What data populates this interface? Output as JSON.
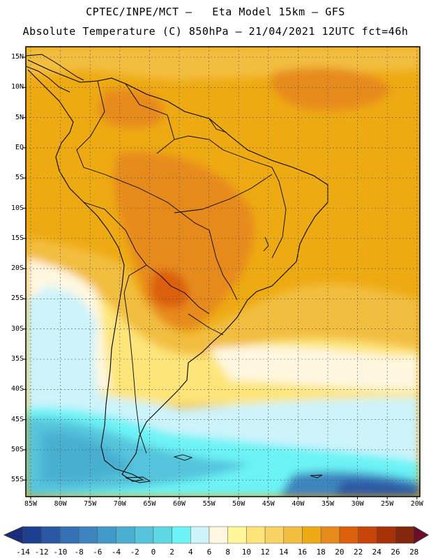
{
  "header": {
    "line1": "CPTEC/INPE/MCT –   Eta Model 15km – GFS",
    "line2": "Absolute Temperature (C) 850hPa – 21/04/2021 12UTC fct=46h"
  },
  "map": {
    "lat_labels": [
      "15N",
      "10N",
      "5N",
      "EQ",
      "5S",
      "10S",
      "15S",
      "20S",
      "25S",
      "30S",
      "35S",
      "40S",
      "45S",
      "50S",
      "55S"
    ],
    "lon_labels": [
      "85W",
      "80W",
      "75W",
      "70W",
      "65W",
      "60W",
      "55W",
      "50W",
      "45W",
      "40W",
      "35W",
      "30W",
      "25W",
      "20W"
    ]
  },
  "colorbar": {
    "labels": [
      "-14",
      "-12",
      "-10",
      "-8",
      "-6",
      "-4",
      "-2",
      "0",
      "2",
      "4",
      "6",
      "8",
      "10",
      "12",
      "14",
      "16",
      "18",
      "20",
      "22",
      "24",
      "26",
      "28"
    ],
    "colors": [
      "#1d3f8f",
      "#2a58a4",
      "#3470b4",
      "#3c85c0",
      "#429ac8",
      "#4aafd0",
      "#55c4dc",
      "#5fd8e6",
      "#6cf3f6",
      "#cdf3fb",
      "#fff7e0",
      "#fff69a",
      "#fde57a",
      "#f8d262",
      "#f2be40",
      "#eeaa12",
      "#e78a1c",
      "#dc5f0a",
      "#c7450a",
      "#a83208",
      "#82260c"
    ],
    "low_end": "#1b2c7a",
    "high_end": "#6e0a2a"
  }
}
